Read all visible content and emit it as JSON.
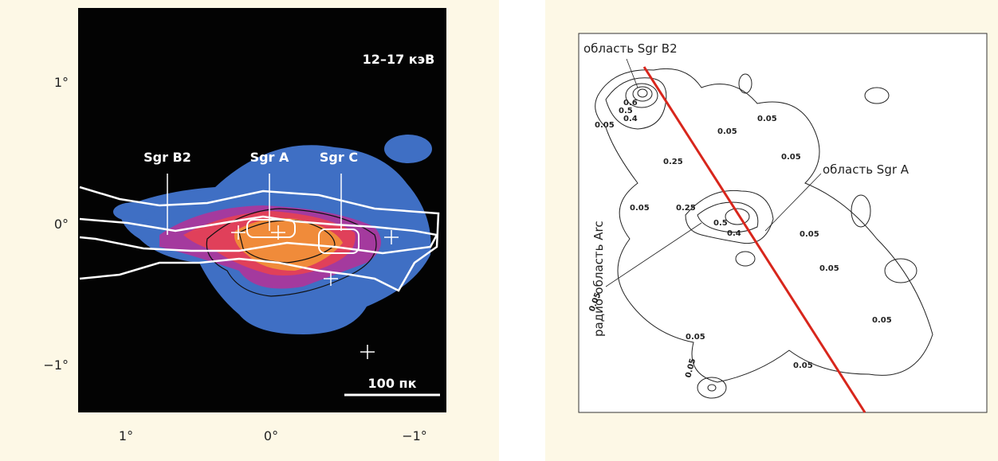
{
  "left_panel": {
    "energy_label": "12–17 кэВ",
    "sources": [
      "Sgr B2",
      "Sgr A",
      "Sgr C"
    ],
    "y_ticks": [
      "1°",
      "0°",
      "−1°"
    ],
    "x_ticks": [
      "1°",
      "0°",
      "−1°"
    ],
    "scale_bar": "100 пк"
  },
  "right_panel": {
    "region_labels": [
      "область Sgr B2",
      "область Sgr A",
      "радио-область Arc"
    ],
    "contour_labels": [
      "0.05",
      "0.6",
      "0.5",
      "0.4",
      "0.25",
      "0.05",
      "0.05",
      "0.05",
      "0.25",
      "0.05",
      "0.5",
      "0.4",
      "0.05",
      "0.05",
      "0.05",
      "0.05",
      "0.05",
      "0.05",
      "0.05"
    ]
  }
}
